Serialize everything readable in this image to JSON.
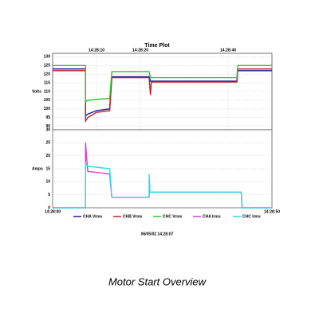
{
  "chart_data": [
    {
      "type": "line",
      "title": "Time Plot",
      "y_label": "Volts",
      "x": [
        0,
        7.5,
        7.5,
        8,
        10,
        13,
        13.5,
        22,
        22.3,
        22.5,
        42,
        42.2,
        50
      ],
      "series": [
        {
          "name": "CHA Vrms",
          "color": "#1a1a8c",
          "values": [
            123,
            123,
            96,
            97,
            99,
            100,
            118.5,
            118.5,
            116,
            116,
            116,
            122,
            122
          ]
        },
        {
          "name": "CHB Vrms",
          "color": "#c0202a",
          "values": [
            122,
            122,
            93,
            95,
            98,
            99,
            118,
            118,
            108,
            115.5,
            115.5,
            123,
            123
          ]
        },
        {
          "name": "CHC Vrms",
          "color": "#28c828",
          "values": [
            125,
            125,
            104,
            105,
            105.5,
            106,
            121.5,
            121.5,
            118,
            118,
            118,
            125,
            125
          ]
        }
      ],
      "xlim": [
        0,
        50
      ],
      "xticks": [
        {
          "value": 10,
          "label": "14:28:10"
        },
        {
          "value": 20,
          "label": "14:28:20"
        },
        {
          "value": 40,
          "label": "14:28:40"
        }
      ],
      "ylim": [
        88,
        132
      ],
      "yticks": [
        90,
        95,
        100,
        105,
        110,
        115,
        120,
        125,
        130
      ],
      "grid": true
    },
    {
      "type": "line",
      "y_label": "Amps",
      "x": [
        0,
        7.5,
        7.5,
        8,
        13,
        13.5,
        22,
        22,
        22.2,
        43,
        43.2,
        50
      ],
      "series": [
        {
          "name": "CHA Irms",
          "color": "#d040d0",
          "values": [
            0,
            0,
            25,
            14,
            13,
            4,
            4,
            6,
            6,
            6,
            0,
            0
          ]
        },
        {
          "name": "CHC Irms",
          "color": "#30d8e8",
          "values": [
            0,
            0,
            17,
            16,
            15,
            4,
            4,
            13,
            6,
            6,
            0,
            0
          ]
        }
      ],
      "xlim": [
        0,
        50
      ],
      "xticks": [
        {
          "value": 0,
          "label": "14:28:00"
        },
        {
          "value": 50,
          "label": "14:28:50"
        }
      ],
      "ylim": [
        0,
        30
      ],
      "yticks": [
        0,
        5,
        10,
        15,
        20,
        25,
        30
      ],
      "grid": true
    }
  ],
  "timestamp": "06/05/02 14:28:07",
  "caption": "Motor Start Overview"
}
